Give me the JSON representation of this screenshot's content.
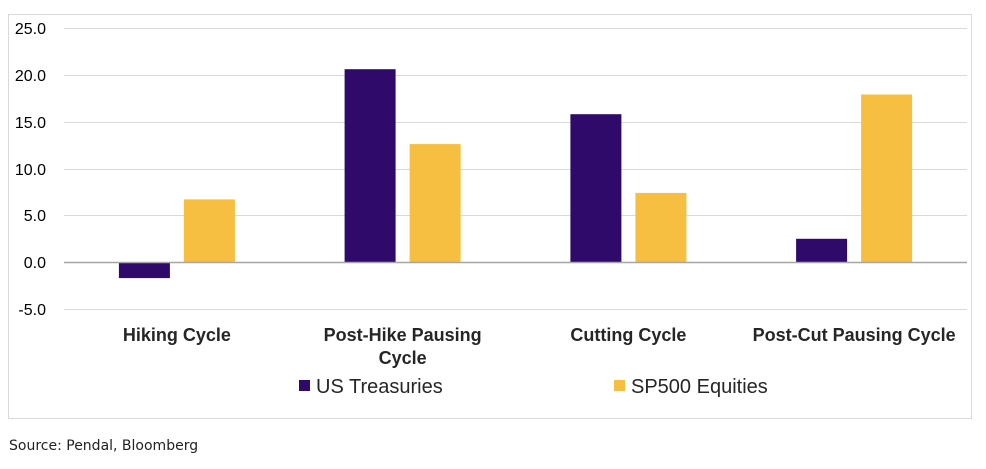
{
  "source_note": "Source: Pendal, Bloomberg",
  "colors": {
    "us_treasuries": "#2f0a6b",
    "sp500_equities": "#f6bf42",
    "gridline": "#d9d9d9",
    "zero_line": "#a6a6a6"
  },
  "chart_data": {
    "type": "bar",
    "title": "",
    "xlabel": "",
    "ylabel": "",
    "categories": [
      "Hiking Cycle",
      "Post-Hike Pausing Cycle",
      "Cutting Cycle",
      "Post-Cut Pausing Cycle"
    ],
    "category_lines": [
      [
        "Hiking Cycle"
      ],
      [
        "Post-Hike Pausing",
        "Cycle"
      ],
      [
        "Cutting Cycle"
      ],
      [
        "Post-Cut Pausing Cycle"
      ]
    ],
    "series": [
      {
        "name": "US Treasuries",
        "values": [
          -1.7,
          20.6,
          15.8,
          2.5
        ]
      },
      {
        "name": "SP500 Equities",
        "values": [
          6.7,
          12.6,
          7.4,
          17.9
        ]
      }
    ],
    "ylim": [
      -5,
      25
    ],
    "yticks": [
      "25.0",
      "20.0",
      "15.0",
      "10.0",
      "5.0",
      "0.0",
      "-5.0"
    ],
    "ytick_values": [
      25,
      20,
      15,
      10,
      5,
      0,
      -5
    ],
    "grid": true,
    "legend_position": "bottom"
  }
}
